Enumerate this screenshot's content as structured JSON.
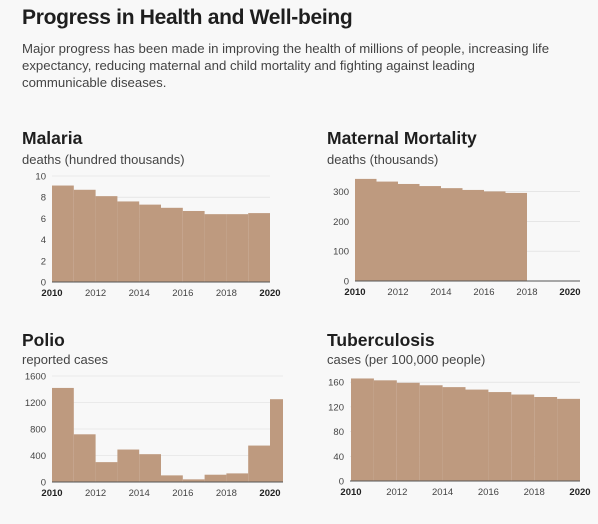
{
  "header": {
    "title": "Progress in Health and Well-being",
    "subtitle": "Major progress has been made in improving the health of millions of people, increasing life expectancy, reducing maternal and child mortality and fighting against leading communicable diseases."
  },
  "colors": {
    "bar": "#be9a7f",
    "axis": "#555555",
    "grid": "#dcdcdc"
  },
  "chart_data": [
    {
      "type": "bar",
      "title": "Malaria",
      "subtitle": "deaths (hundred thousands)",
      "x": [
        2010,
        2011,
        2012,
        2013,
        2014,
        2015,
        2016,
        2017,
        2018,
        2019
      ],
      "values": [
        9.1,
        8.7,
        8.1,
        7.6,
        7.3,
        7.0,
        6.7,
        6.4,
        6.4,
        6.5
      ],
      "ylim": [
        0,
        10
      ],
      "yticks": [
        0,
        2,
        4,
        6,
        8,
        10
      ],
      "xticks": [
        "2010",
        "2012",
        "2014",
        "2016",
        "2018",
        "2020"
      ],
      "grid": true
    },
    {
      "type": "bar",
      "title": "Maternal Mortality",
      "subtitle": "deaths (thousands)",
      "x": [
        2010,
        2011,
        2012,
        2013,
        2014,
        2015,
        2016,
        2017
      ],
      "values": [
        342,
        333,
        325,
        318,
        311,
        305,
        300,
        295
      ],
      "ylim": [
        0,
        345
      ],
      "yticks": [
        0,
        100,
        200,
        300
      ],
      "xticks": [
        "2010",
        "2012",
        "2014",
        "2016",
        "2018",
        "2020"
      ],
      "grid": true
    },
    {
      "type": "bar",
      "title": "Polio",
      "subtitle": "reported cases",
      "x": [
        2010,
        2011,
        2012,
        2013,
        2014,
        2015,
        2016,
        2017,
        2018,
        2019,
        2020
      ],
      "values": [
        1420,
        720,
        300,
        490,
        420,
        100,
        40,
        110,
        130,
        550,
        1250
      ],
      "ylim": [
        0,
        1600
      ],
      "yticks": [
        0,
        400,
        800,
        1200,
        1600
      ],
      "xticks": [
        "2010",
        "2012",
        "2014",
        "2016",
        "2018",
        "2020"
      ],
      "grid": true
    },
    {
      "type": "bar",
      "title": "Tuberculosis",
      "subtitle": "cases (per 100,000 people)",
      "x": [
        2010,
        2011,
        2012,
        2013,
        2014,
        2015,
        2016,
        2017,
        2018,
        2019
      ],
      "values": [
        166,
        163,
        159,
        155,
        152,
        148,
        144,
        140,
        136,
        133
      ],
      "ylim": [
        0,
        170
      ],
      "yticks": [
        0,
        40,
        80,
        120,
        160
      ],
      "xticks": [
        "2010",
        "2012",
        "2014",
        "2016",
        "2018",
        "2020"
      ],
      "grid": true
    }
  ]
}
